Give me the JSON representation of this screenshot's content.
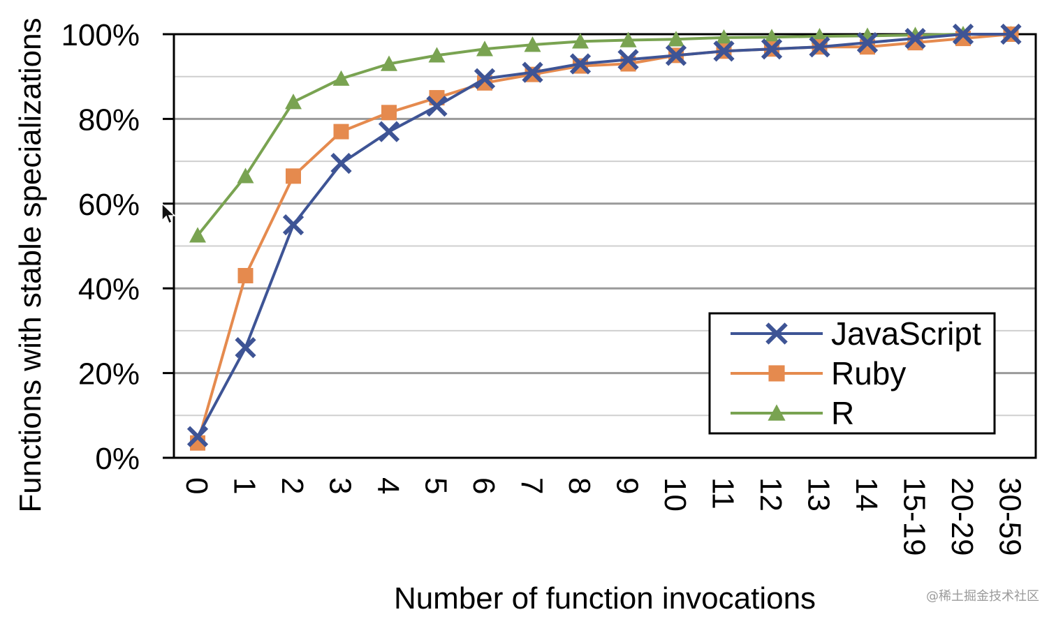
{
  "chart_data": {
    "type": "line",
    "title": "",
    "xlabel": "Number of function invocations",
    "ylabel": "Functions with stable specializations",
    "categories": [
      "0",
      "1",
      "2",
      "3",
      "4",
      "5",
      "6",
      "7",
      "8",
      "9",
      "10",
      "11",
      "12",
      "13",
      "14",
      "15-19",
      "20-29",
      "30-59"
    ],
    "yticks": [
      "0%",
      "20%",
      "40%",
      "60%",
      "80%",
      "100%"
    ],
    "ylim": [
      0,
      100
    ],
    "grid": true,
    "legend_position": "bottom-right",
    "series": [
      {
        "name": "JavaScript",
        "color": "#3e5495",
        "marker": "x",
        "values": [
          5,
          26,
          55,
          69.5,
          77,
          83,
          89.5,
          91,
          93,
          94,
          95,
          96,
          96.5,
          97,
          98,
          99,
          100,
          100
        ]
      },
      {
        "name": "Ruby",
        "color": "#e58a4e",
        "marker": "square",
        "values": [
          3.5,
          43,
          66.5,
          77,
          81.5,
          85,
          88.5,
          90.5,
          92.5,
          93,
          95,
          96,
          96.5,
          97,
          97,
          98,
          99,
          100
        ]
      },
      {
        "name": "R",
        "color": "#79a351",
        "marker": "triangle",
        "values": [
          52.5,
          66.5,
          84,
          89.5,
          93,
          95,
          96.5,
          97.5,
          98.3,
          98.6,
          98.8,
          99.2,
          99.3,
          99.5,
          99.6,
          99.8,
          100,
          100
        ]
      }
    ]
  },
  "watermark": "@稀土掘金技术社区"
}
